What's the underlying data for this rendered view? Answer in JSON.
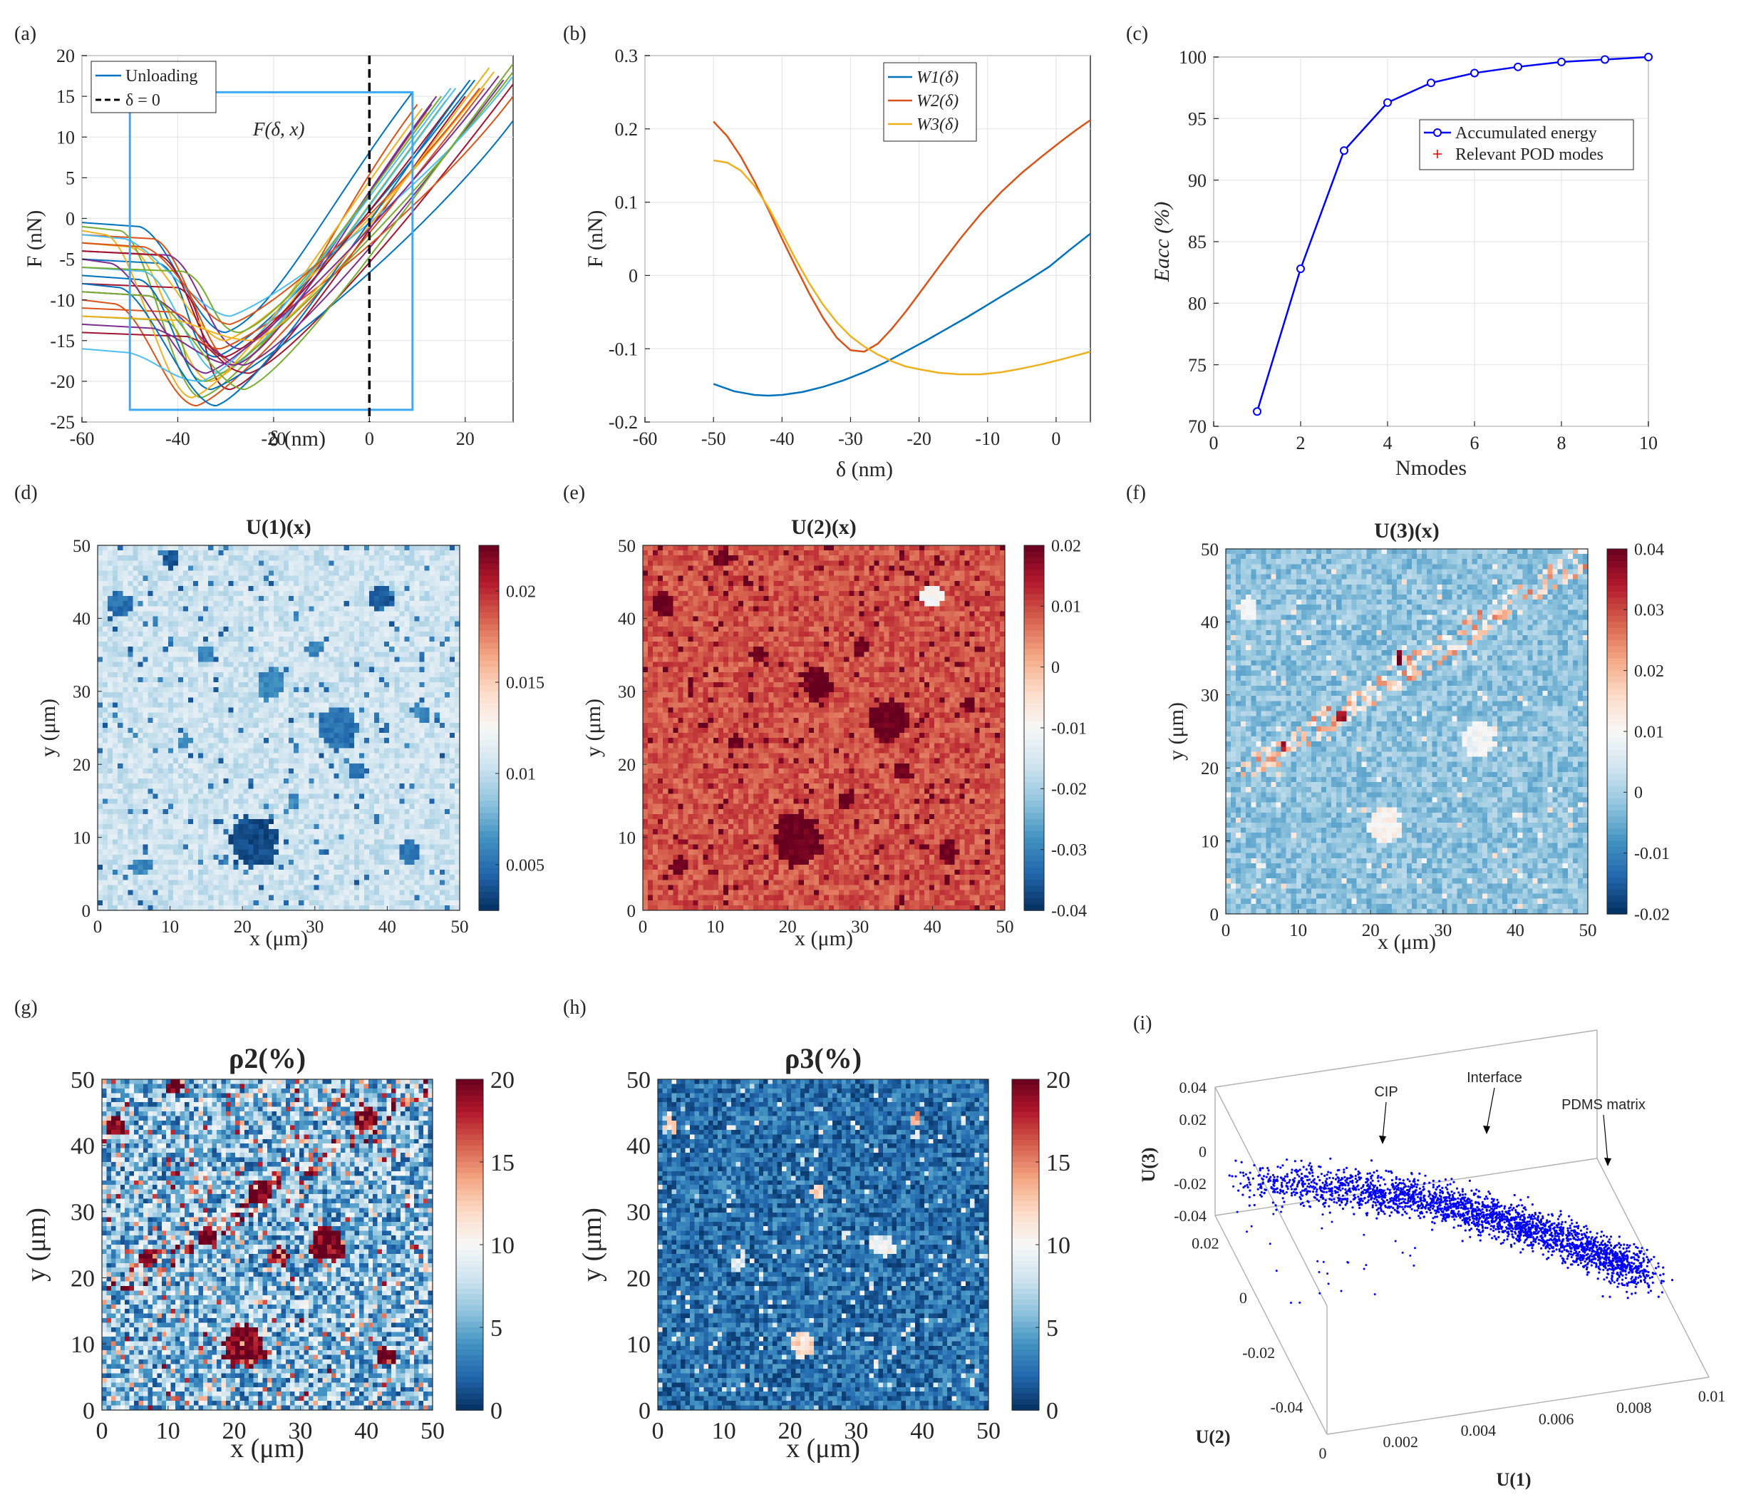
{
  "figure": {
    "background": "#ffffff"
  },
  "chart_data": [
    {
      "id": "a",
      "panel_label": "(a)",
      "type": "line",
      "xlabel": "δ (nm)",
      "ylabel": "F (nN)",
      "xlim": [
        -60,
        30
      ],
      "ylim": [
        -25,
        20
      ],
      "xticks": [
        -60,
        -40,
        -20,
        0,
        20
      ],
      "yticks": [
        -25,
        -20,
        -15,
        -10,
        -5,
        0,
        5,
        10,
        15,
        20
      ],
      "legend": [
        "Unloading",
        "δ = 0"
      ],
      "annotation": "F(δ, x)",
      "selection_box": {
        "x": [
          -50,
          9
        ],
        "y": [
          -23.5,
          15.5
        ]
      },
      "series_colors": [
        "#0072BD",
        "#D95319",
        "#EDB120",
        "#7E2F8E",
        "#77AC30",
        "#4DBEEE",
        "#A2142F"
      ],
      "curve_count": 26,
      "curve_parameters": {
        "baseline_F": [
          -0.5,
          -2,
          -3,
          -4,
          -1,
          -6,
          -8,
          -5,
          -10,
          -3,
          -9,
          -12,
          -2,
          -14,
          -7,
          -11,
          -1.5,
          -13,
          -6,
          -16,
          -4,
          -8,
          -3,
          -12,
          -5,
          -9
        ],
        "adhesion_drop_delta": [
          -48,
          -45,
          -50,
          -42,
          -52,
          -47,
          -40,
          -44,
          -53,
          -49,
          -46,
          -43,
          -51,
          -38,
          -48,
          -41,
          -55,
          -45,
          -39,
          -50,
          -44,
          -52,
          -47,
          -40,
          -54,
          -46
        ],
        "minimum_delta": [
          -30,
          -28,
          -33,
          -27,
          -35,
          -31,
          -29,
          -32,
          -36,
          -30,
          -26,
          -34,
          -29,
          -25,
          -33,
          -31,
          -37,
          -28,
          -27,
          -35,
          -30,
          -32,
          -29,
          -24,
          -34,
          -26
        ],
        "minimum_F": [
          -14,
          -18,
          -20,
          -16,
          -22,
          -19,
          -21,
          -17,
          -23,
          -15,
          -18,
          -20,
          -12,
          -19,
          -21,
          -16,
          -22,
          -18,
          -14,
          -20,
          -17,
          -23,
          -13,
          -15,
          -19,
          -21
        ],
        "endpoint_delta": [
          9,
          10,
          12,
          14,
          16,
          18,
          20,
          22,
          24,
          26,
          28,
          30,
          30,
          30,
          30,
          30,
          11,
          13,
          15,
          17,
          19,
          21,
          23,
          25,
          27,
          30
        ],
        "endpoint_F": [
          15.5,
          14,
          13,
          15,
          14.5,
          16,
          15,
          17,
          16,
          18,
          17,
          18,
          17.5,
          16.5,
          12,
          15,
          13.5,
          14,
          15,
          16,
          15.5,
          17,
          16,
          18.5,
          17.5,
          19
        ]
      }
    },
    {
      "id": "b",
      "panel_label": "(b)",
      "type": "line",
      "xlabel": "δ (nm)",
      "ylabel": "F (nN)",
      "xlim": [
        -60,
        5
      ],
      "ylim": [
        -0.2,
        0.3
      ],
      "xticks": [
        -60,
        -50,
        -40,
        -30,
        -20,
        -10,
        0
      ],
      "yticks": [
        -0.2,
        -0.1,
        0,
        0.1,
        0.2,
        0.3
      ],
      "legend": [
        "W1(δ)",
        "W2(δ)",
        "W3(δ)"
      ],
      "series": [
        {
          "name": "W1(δ)",
          "color": "#0072BD",
          "x": [
            -50,
            -47,
            -44,
            -42,
            -40,
            -37,
            -34,
            -31,
            -28,
            -25,
            -22,
            -19,
            -16,
            -13,
            -10,
            -7,
            -4,
            -1,
            2,
            5
          ],
          "y": [
            -0.148,
            -0.158,
            -0.163,
            -0.164,
            -0.163,
            -0.159,
            -0.152,
            -0.143,
            -0.132,
            -0.119,
            -0.104,
            -0.089,
            -0.073,
            -0.057,
            -0.04,
            -0.023,
            -0.006,
            0.012,
            0.035,
            0.057
          ]
        },
        {
          "name": "W2(δ)",
          "color": "#D95319",
          "x": [
            -50,
            -48,
            -46,
            -44,
            -42,
            -40,
            -38,
            -36,
            -34,
            -32,
            -30,
            -28,
            -26,
            -24,
            -22,
            -20,
            -17,
            -14,
            -11,
            -8,
            -5,
            -2,
            1,
            3,
            5
          ],
          "y": [
            0.21,
            0.19,
            0.162,
            0.128,
            0.09,
            0.05,
            0.012,
            -0.025,
            -0.058,
            -0.085,
            -0.102,
            -0.104,
            -0.093,
            -0.073,
            -0.05,
            -0.025,
            0.013,
            0.05,
            0.084,
            0.114,
            0.14,
            0.163,
            0.185,
            0.199,
            0.212
          ]
        },
        {
          "name": "W3(δ)",
          "color": "#EDB120",
          "x": [
            -50,
            -48,
            -46,
            -44,
            -42,
            -40,
            -38,
            -36,
            -34,
            -32,
            -30,
            -28,
            -26,
            -24,
            -22,
            -20,
            -17,
            -14,
            -11,
            -8,
            -5,
            -2,
            1,
            3,
            5
          ],
          "y": [
            0.157,
            0.154,
            0.143,
            0.122,
            0.093,
            0.058,
            0.022,
            -0.011,
            -0.04,
            -0.064,
            -0.083,
            -0.097,
            -0.108,
            -0.117,
            -0.124,
            -0.128,
            -0.133,
            -0.135,
            -0.135,
            -0.132,
            -0.127,
            -0.121,
            -0.114,
            -0.109,
            -0.104
          ]
        }
      ]
    },
    {
      "id": "c",
      "panel_label": "(c)",
      "type": "line",
      "xlabel": "Nmodes",
      "ylabel": "Eacc (%)",
      "xlim": [
        0,
        10
      ],
      "ylim": [
        70,
        100
      ],
      "xticks": [
        0,
        2,
        4,
        6,
        8,
        10
      ],
      "yticks": [
        70,
        75,
        80,
        85,
        90,
        95,
        100
      ],
      "legend": [
        "Accumulated energy",
        "Relevant POD modes"
      ],
      "series": [
        {
          "name": "Accumulated energy",
          "color": "#0000FF",
          "x": [
            1,
            2,
            3,
            4,
            5,
            6,
            7,
            8,
            9,
            10
          ],
          "y": [
            71.2,
            82.8,
            92.4,
            96.3,
            97.9,
            98.7,
            99.2,
            99.6,
            99.8,
            100.0
          ]
        },
        {
          "name": "Relevant POD modes",
          "color": "#FF0000",
          "x": [],
          "y": []
        }
      ]
    },
    {
      "id": "d",
      "panel_label": "(d)",
      "type": "heatmap",
      "title": "U(1)(x)",
      "xlabel": "x (μm)",
      "ylabel": "y (μm)",
      "xlim": [
        0,
        50
      ],
      "ylim": [
        0,
        50
      ],
      "xticks": [
        0,
        10,
        20,
        30,
        40,
        50
      ],
      "yticks": [
        0,
        10,
        20,
        30,
        40,
        50
      ],
      "colorbar": {
        "min": 0.0025,
        "max": 0.0225,
        "ticks": [
          "0.005",
          "0.01",
          "0.015",
          "0.02"
        ]
      },
      "colormap": [
        "#053061",
        "#2166AC",
        "#4393C3",
        "#92C5DE",
        "#D1E5F0",
        "#F7F7F7",
        "#FDDBC7",
        "#F4A582",
        "#D6604D",
        "#B2182B",
        "#67001F"
      ],
      "matrix_background": 0.0105,
      "features": [
        {
          "x": 21.5,
          "y": 9.5,
          "r": 3.4,
          "v": 0.0035
        },
        {
          "x": 33,
          "y": 25,
          "r": 2.8,
          "v": 0.005
        },
        {
          "x": 39,
          "y": 43,
          "r": 1.8,
          "v": 0.004
        },
        {
          "x": 24,
          "y": 31,
          "r": 2.2,
          "v": 0.006
        },
        {
          "x": 3,
          "y": 42,
          "r": 1.6,
          "v": 0.005
        },
        {
          "x": 10,
          "y": 48,
          "r": 1.2,
          "v": 0.004
        },
        {
          "x": 43,
          "y": 8,
          "r": 1.5,
          "v": 0.005
        },
        {
          "x": 6,
          "y": 6,
          "r": 1.3,
          "v": 0.006
        },
        {
          "x": 30,
          "y": 36,
          "r": 1.2,
          "v": 0.006
        },
        {
          "x": 15,
          "y": 35,
          "r": 1.1,
          "v": 0.006
        },
        {
          "x": 36,
          "y": 19,
          "r": 1.2,
          "v": 0.005
        },
        {
          "x": 12,
          "y": 23,
          "r": 1.0,
          "v": 0.006
        },
        {
          "x": 45,
          "y": 27,
          "r": 1.1,
          "v": 0.006
        },
        {
          "x": 27,
          "y": 15,
          "r": 1.0,
          "v": 0.006
        }
      ]
    },
    {
      "id": "e",
      "panel_label": "(e)",
      "type": "heatmap",
      "title": "U(2)(x)",
      "xlabel": "x (μm)",
      "ylabel": "y (μm)",
      "xlim": [
        0,
        50
      ],
      "ylim": [
        0,
        50
      ],
      "xticks": [
        0,
        10,
        20,
        30,
        40,
        50
      ],
      "yticks": [
        0,
        10,
        20,
        30,
        40,
        50
      ],
      "colorbar": {
        "min": -0.04,
        "max": 0.02,
        "ticks": [
          "-0.04",
          "-0.03",
          "-0.02",
          "-0.01",
          "0",
          "0.01",
          "0.02"
        ]
      },
      "colormap": [
        "#053061",
        "#2166AC",
        "#4393C3",
        "#92C5DE",
        "#D1E5F0",
        "#F7F7F7",
        "#FDDBC7",
        "#F4A582",
        "#D6604D",
        "#B2182B",
        "#67001F"
      ],
      "matrix_background": 0.009,
      "features": [
        {
          "x": 21.5,
          "y": 9.5,
          "r": 3.4,
          "v": 0.02
        },
        {
          "x": 34,
          "y": 26,
          "r": 2.8,
          "v": 0.02
        },
        {
          "x": 40,
          "y": 43,
          "r": 1.6,
          "v": -0.01
        },
        {
          "x": 24,
          "y": 31,
          "r": 2.2,
          "v": 0.02
        },
        {
          "x": 3,
          "y": 42,
          "r": 1.6,
          "v": 0.02
        },
        {
          "x": 11,
          "y": 48,
          "r": 1.2,
          "v": 0.02
        },
        {
          "x": 42,
          "y": 8,
          "r": 1.5,
          "v": 0.02
        },
        {
          "x": 5,
          "y": 6,
          "r": 1.3,
          "v": 0.02
        },
        {
          "x": 30,
          "y": 36,
          "r": 1.2,
          "v": 0.02
        },
        {
          "x": 16,
          "y": 35,
          "r": 1.1,
          "v": 0.02
        },
        {
          "x": 36,
          "y": 19,
          "r": 1.2,
          "v": 0.02
        },
        {
          "x": 13,
          "y": 23,
          "r": 1.0,
          "v": 0.02
        },
        {
          "x": 45,
          "y": 28,
          "r": 1.1,
          "v": 0.02
        },
        {
          "x": 28,
          "y": 15,
          "r": 1.0,
          "v": 0.02
        }
      ]
    },
    {
      "id": "f",
      "panel_label": "(f)",
      "type": "heatmap",
      "title": "U(3)(x)",
      "xlabel": "x (μm)",
      "ylabel": "y (μm)",
      "xlim": [
        0,
        50
      ],
      "ylim": [
        0,
        50
      ],
      "xticks": [
        0,
        10,
        20,
        30,
        40,
        50
      ],
      "yticks": [
        0,
        10,
        20,
        30,
        40,
        50
      ],
      "colorbar": {
        "min": -0.02,
        "max": 0.04,
        "ticks": [
          "-0.02",
          "-0.01",
          "0",
          "0.01",
          "0.02",
          "0.03",
          "0.04"
        ]
      },
      "colormap": [
        "#053061",
        "#2166AC",
        "#4393C3",
        "#92C5DE",
        "#D1E5F0",
        "#F7F7F7",
        "#FDDBC7",
        "#F4A582",
        "#D6604D",
        "#B2182B",
        "#67001F"
      ],
      "matrix_background": -0.002,
      "interface_band": {
        "from": [
          2,
          19
        ],
        "to": [
          50,
          49
        ],
        "v": 0.018
      },
      "features": [
        {
          "x": 22,
          "y": 12,
          "r": 2.4,
          "v": 0.011
        },
        {
          "x": 35,
          "y": 24,
          "r": 2.4,
          "v": 0.009
        },
        {
          "x": 3,
          "y": 42,
          "r": 1.5,
          "v": 0.01
        },
        {
          "x": 24,
          "y": 35,
          "r": 0.8,
          "v": 0.04
        },
        {
          "x": 16,
          "y": 27,
          "r": 0.8,
          "v": 0.035
        },
        {
          "x": 8,
          "y": 23,
          "r": 0.7,
          "v": 0.035
        }
      ]
    },
    {
      "id": "g",
      "panel_label": "(g)",
      "type": "heatmap",
      "title": "ρ2(%)",
      "xlabel": "x (μm)",
      "ylabel": "y (μm)",
      "xlim": [
        0,
        50
      ],
      "ylim": [
        0,
        50
      ],
      "xticks": [
        0,
        10,
        20,
        30,
        40,
        50
      ],
      "yticks": [
        0,
        10,
        20,
        30,
        40,
        50
      ],
      "colorbar": {
        "min": 0,
        "max": 20,
        "ticks": [
          "0",
          "5",
          "10",
          "15",
          "20"
        ]
      },
      "colormap": [
        "#053061",
        "#2166AC",
        "#4393C3",
        "#92C5DE",
        "#D1E5F0",
        "#F7F7F7",
        "#FDDBC7",
        "#F4A582",
        "#D6604D",
        "#B2182B",
        "#67001F"
      ],
      "matrix_background": 5.5,
      "interface_band": {
        "from": [
          2,
          18
        ],
        "to": [
          50,
          49
        ],
        "v": 14
      },
      "features": [
        {
          "x": 21.5,
          "y": 9.5,
          "r": 3.2,
          "v": 20
        },
        {
          "x": 34,
          "y": 25,
          "r": 2.6,
          "v": 20
        },
        {
          "x": 40,
          "y": 44,
          "r": 1.6,
          "v": 20
        },
        {
          "x": 24,
          "y": 33,
          "r": 1.8,
          "v": 20
        },
        {
          "x": 2,
          "y": 43,
          "r": 1.5,
          "v": 20
        },
        {
          "x": 11,
          "y": 49,
          "r": 1.2,
          "v": 20
        },
        {
          "x": 43,
          "y": 8,
          "r": 1.3,
          "v": 20
        },
        {
          "x": 7,
          "y": 23,
          "r": 1.3,
          "v": 20
        },
        {
          "x": 16,
          "y": 26,
          "r": 1.4,
          "v": 20
        },
        {
          "x": 27,
          "y": 23,
          "r": 1.2,
          "v": 20
        }
      ]
    },
    {
      "id": "h",
      "panel_label": "(h)",
      "type": "heatmap",
      "title": "ρ3(%)",
      "xlabel": "x (μm)",
      "ylabel": "y (μm)",
      "xlim": [
        0,
        50
      ],
      "ylim": [
        0,
        50
      ],
      "xticks": [
        0,
        10,
        20,
        30,
        40,
        50
      ],
      "yticks": [
        0,
        10,
        20,
        30,
        40,
        50
      ],
      "colorbar": {
        "min": 0,
        "max": 20,
        "ticks": [
          "0",
          "5",
          "10",
          "15",
          "20"
        ]
      },
      "colormap": [
        "#053061",
        "#2166AC",
        "#4393C3",
        "#92C5DE",
        "#D1E5F0",
        "#F7F7F7",
        "#FDDBC7",
        "#F4A582",
        "#D6604D",
        "#B2182B",
        "#67001F"
      ],
      "matrix_background": 2.5,
      "features": [
        {
          "x": 22,
          "y": 10,
          "r": 1.8,
          "v": 12
        },
        {
          "x": 34,
          "y": 25,
          "r": 1.7,
          "v": 10
        },
        {
          "x": 39,
          "y": 44,
          "r": 1.0,
          "v": 14
        },
        {
          "x": 24,
          "y": 33,
          "r": 1.1,
          "v": 12
        },
        {
          "x": 2,
          "y": 43,
          "r": 1.0,
          "v": 12
        },
        {
          "x": 12,
          "y": 22,
          "r": 0.9,
          "v": 9
        }
      ]
    },
    {
      "id": "i",
      "panel_label": "(i)",
      "type": "scatter",
      "subtype": "scatter3d",
      "color": "#0000FF",
      "xlabel": "U(1)",
      "ylabel": "U(2)",
      "zlabel": "U(3)",
      "xlim": [
        0,
        0.01
      ],
      "ylim": [
        -0.05,
        0.03
      ],
      "zlim": [
        -0.04,
        0.04
      ],
      "xticks": [
        "0",
        "0.002",
        "0.004",
        "0.006",
        "0.008",
        "0.01"
      ],
      "yticks": [
        "-0.04",
        "-0.02",
        "0",
        "0.02"
      ],
      "zticks": [
        "-0.04",
        "-0.02",
        "0",
        "0.02",
        "0.04"
      ],
      "cluster_description": [
        {
          "label": "CIP",
          "U1": 0.002,
          "U2": 0.02,
          "U3": -0.005
        },
        {
          "label": "Interface",
          "U1": 0.005,
          "U2": 0.0,
          "U3": 0.004
        },
        {
          "label": "PDMS matrix",
          "U1": 0.008,
          "U2": -0.025,
          "U3": -0.01
        }
      ],
      "annotations": [
        "CIP",
        "Interface",
        "PDMS matrix"
      ],
      "approx_point_count": 2600
    }
  ]
}
